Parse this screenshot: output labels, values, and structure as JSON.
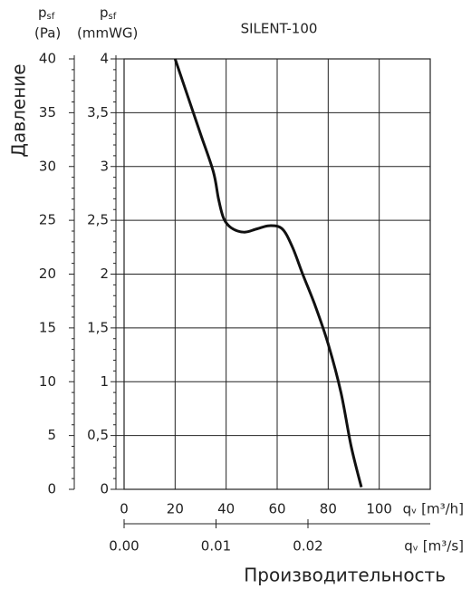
{
  "chart_data": {
    "type": "line",
    "title": "SILENT-100",
    "y_axis_title": "Давление",
    "x_axis_title": "Производительность",
    "left_axis": {
      "symbol": "p",
      "subscript": "sf",
      "unit": "(Pa)"
    },
    "y_axis": {
      "symbol": "p",
      "subscript": "sf",
      "unit": "(mmWG)"
    },
    "x_unit": "qᵥ [m³/h]",
    "x2_unit": "qᵥ [m³/s]",
    "x": [
      20,
      25,
      30,
      35,
      37,
      39,
      42,
      47,
      52,
      57,
      62,
      66,
      70,
      75,
      80,
      85,
      89,
      93
    ],
    "series": [
      {
        "name": "SILENT-100",
        "color": "#111111",
        "values": [
          4,
          3.65,
          3.3,
          2.95,
          2.7,
          2.52,
          2.43,
          2.39,
          2.42,
          2.45,
          2.42,
          2.25,
          2.0,
          1.7,
          1.35,
          0.9,
          0.4,
          0.02
        ]
      }
    ],
    "xlim": [
      0,
      120
    ],
    "xticks": [
      0,
      20,
      40,
      60,
      80,
      100
    ],
    "ylim": [
      0,
      4
    ],
    "yticks": [
      0,
      {
        "value": 0.5,
        "label": "0,5"
      },
      1,
      {
        "value": 1.5,
        "label": "1,5"
      },
      2,
      {
        "value": 2.5,
        "label": "2,5"
      },
      3,
      {
        "value": 3.5,
        "label": "3,5"
      },
      4
    ],
    "y3lim": [
      0,
      40
    ],
    "y3ticks": [
      0,
      5,
      10,
      15,
      20,
      25,
      30,
      35,
      40
    ],
    "x2lim": [
      0,
      0.0333
    ],
    "x2ticks": [
      {
        "value": 0,
        "label": "0.00"
      },
      {
        "value": 0.01,
        "label": "0.01"
      },
      {
        "value": 0.02,
        "label": "0.02"
      }
    ],
    "grid": true,
    "minor_ticks": true
  }
}
